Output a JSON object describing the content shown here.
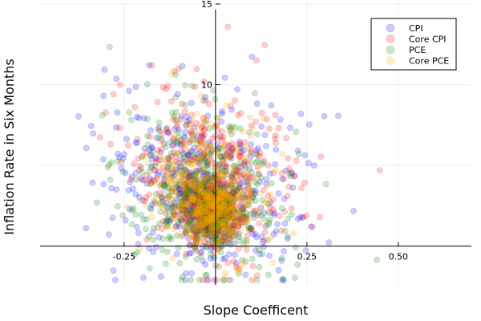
{
  "chart_data": {
    "type": "scatter",
    "title": "",
    "xlabel": "Slope Coefficent",
    "ylabel": "Inflation Rate in Six Months",
    "xlim": [
      -0.48,
      0.7
    ],
    "ylim": [
      -2.4,
      15
    ],
    "xticks": [
      {
        "value": -0.25,
        "label": "-0.25"
      },
      {
        "value": 0.25,
        "label": "0.25"
      },
      {
        "value": 0.5,
        "label": "0.50"
      }
    ],
    "yticks": [
      {
        "value": 10,
        "label": "10"
      },
      {
        "value": 15,
        "label": "15"
      }
    ],
    "grid": true,
    "legend_position": "top-right",
    "series": [
      {
        "name": "CPI",
        "color": "#0000ff",
        "count": 720,
        "center_x": -0.03,
        "spread_x": 0.13,
        "center_y": 3.5,
        "spread_y": 2.9
      },
      {
        "name": "Core CPI",
        "color": "#ff0000",
        "count": 620,
        "center_x": -0.01,
        "spread_x": 0.12,
        "center_y": 4.4,
        "spread_y": 2.6
      },
      {
        "name": "PCE",
        "color": "#008000",
        "count": 620,
        "center_x": -0.03,
        "spread_x": 0.11,
        "center_y": 3.2,
        "spread_y": 2.5
      },
      {
        "name": "Core PCE",
        "color": "#ffa500",
        "count": 620,
        "center_x": -0.02,
        "spread_x": 0.08,
        "center_y": 3.5,
        "spread_y": 2.2
      }
    ],
    "dense_core": {
      "center_x": -0.01,
      "spread_x": 0.04,
      "center_y": 2.2,
      "spread_y": 1.0
    }
  }
}
